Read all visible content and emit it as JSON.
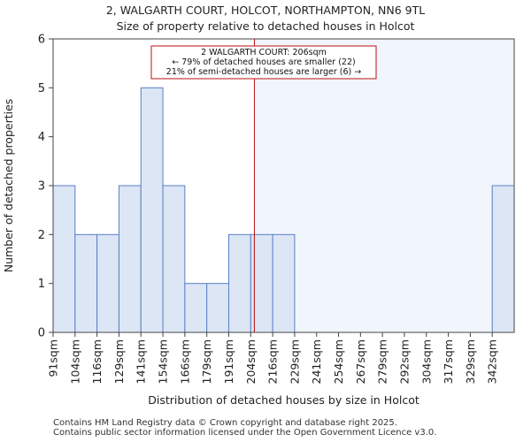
{
  "chart_data": {
    "type": "bar",
    "title": "2, WALGARTH COURT, HOLCOT, NORTHAMPTON, NN6 9TL",
    "subtitle": "Size of property relative to detached houses in Holcot",
    "xlabel": "Distribution of detached houses by size in Holcot",
    "ylabel": "Number of detached properties",
    "categories": [
      "91sqm",
      "104sqm",
      "116sqm",
      "129sqm",
      "141sqm",
      "154sqm",
      "166sqm",
      "179sqm",
      "191sqm",
      "204sqm",
      "216sqm",
      "229sqm",
      "241sqm",
      "254sqm",
      "267sqm",
      "279sqm",
      "292sqm",
      "304sqm",
      "317sqm",
      "329sqm",
      "342sqm"
    ],
    "bin_edges": [
      91,
      104,
      116,
      129,
      141,
      154,
      166,
      179,
      191,
      204,
      216,
      229,
      241,
      254,
      267,
      279,
      292,
      304,
      317,
      329,
      342,
      354
    ],
    "values": [
      3,
      2,
      2,
      3,
      5,
      3,
      1,
      1,
      2,
      2,
      2,
      0,
      0,
      0,
      0,
      0,
      0,
      0,
      0,
      0,
      3
    ],
    "ylim": [
      0,
      6
    ],
    "yticks": [
      0,
      1,
      2,
      3,
      4,
      5,
      6
    ],
    "subject_value": 206,
    "annotation": {
      "line1": "2 WALGARTH COURT: 206sqm",
      "line2": "← 79% of detached houses are smaller (22)",
      "line3": "21% of semi-detached houses are larger (6) →"
    },
    "colors": {
      "bar_fill": "#dce6f5",
      "bar_stroke": "#5b7fc7",
      "highlight_bg": "#f1f5fc",
      "subject_line": "#bb1111",
      "annotation_border": "#bb1111"
    }
  },
  "footer": {
    "line1": "Contains HM Land Registry data © Crown copyright and database right 2025.",
    "line2": "Contains public sector information licensed under the Open Government Licence v3.0."
  }
}
